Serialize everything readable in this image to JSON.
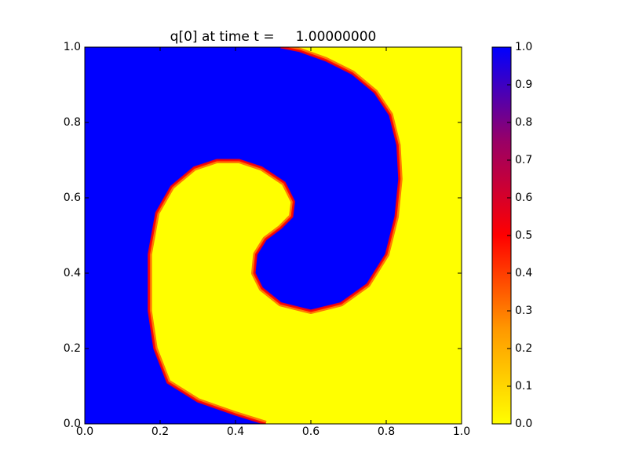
{
  "chart_data": {
    "type": "heatmap",
    "title": "q[0] at time t =     1.00000000",
    "xlim": [
      0,
      1
    ],
    "ylim": [
      0,
      1
    ],
    "xticks": [
      {
        "value": 0,
        "label": "0.0"
      },
      {
        "value": 0.2,
        "label": "0.2"
      },
      {
        "value": 0.4,
        "label": "0.4"
      },
      {
        "value": 0.6,
        "label": "0.6"
      },
      {
        "value": 0.8,
        "label": "0.8"
      },
      {
        "value": 1,
        "label": "1.0"
      }
    ],
    "yticks": [
      {
        "value": 0,
        "label": "0.0"
      },
      {
        "value": 0.2,
        "label": "0.2"
      },
      {
        "value": 0.4,
        "label": "0.4"
      },
      {
        "value": 0.6,
        "label": "0.6"
      },
      {
        "value": 0.8,
        "label": "0.8"
      },
      {
        "value": 1,
        "label": "1.0"
      }
    ],
    "interface": {
      "x": [
        0.48,
        0.4,
        0.3,
        0.22,
        0.185,
        0.17,
        0.17,
        0.19,
        0.23,
        0.29,
        0.35,
        0.41,
        0.47,
        0.53,
        0.555,
        0.55,
        0.52,
        0.48,
        0.455,
        0.45,
        0.47,
        0.52,
        0.6,
        0.68,
        0.75,
        0.8,
        0.825,
        0.835,
        0.83,
        0.81,
        0.77,
        0.71,
        0.64,
        0.57,
        0.52
      ],
      "y": [
        0,
        0.025,
        0.06,
        0.11,
        0.2,
        0.3,
        0.45,
        0.56,
        0.63,
        0.68,
        0.7,
        0.7,
        0.68,
        0.64,
        0.59,
        0.55,
        0.52,
        0.49,
        0.45,
        0.4,
        0.36,
        0.32,
        0.3,
        0.32,
        0.37,
        0.45,
        0.55,
        0.65,
        0.74,
        0.82,
        0.88,
        0.93,
        0.965,
        0.99,
        1
      ]
    },
    "left_value": 1,
    "right_value": 0,
    "colorscale": [
      {
        "value": 0,
        "color": "#ffff00"
      },
      {
        "value": 0.25,
        "color": "#ff9900"
      },
      {
        "value": 0.5,
        "color": "#ff0000"
      },
      {
        "value": 0.75,
        "color": "#990066"
      },
      {
        "value": 1,
        "color": "#0000ff"
      }
    ],
    "clim": [
      0,
      1
    ],
    "cticks": [
      {
        "value": 0,
        "label": "0.0"
      },
      {
        "value": 0.1,
        "label": "0.1"
      },
      {
        "value": 0.2,
        "label": "0.2"
      },
      {
        "value": 0.3,
        "label": "0.3"
      },
      {
        "value": 0.4,
        "label": "0.4"
      },
      {
        "value": 0.5,
        "label": "0.5"
      },
      {
        "value": 0.6,
        "label": "0.6"
      },
      {
        "value": 0.7,
        "label": "0.7"
      },
      {
        "value": 0.8,
        "label": "0.8"
      },
      {
        "value": 0.9,
        "label": "0.9"
      },
      {
        "value": 1,
        "label": "1.0"
      }
    ]
  }
}
